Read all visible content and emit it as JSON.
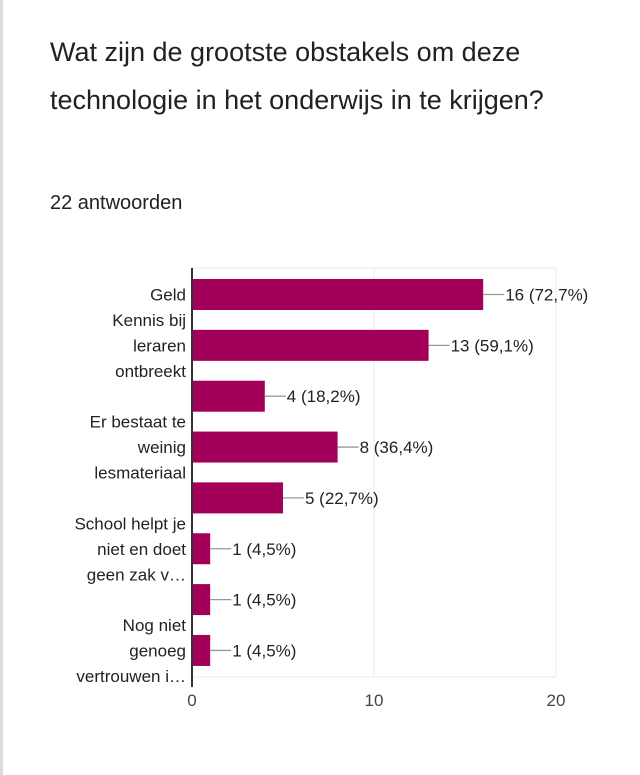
{
  "question": "Wat zijn de grootste obstakels om deze technologie in het onderwijs in te krijgen?",
  "response_count": "22 antwoorden",
  "chart_data": {
    "type": "bar",
    "orientation": "horizontal",
    "categories": [
      [
        "Geld"
      ],
      [
        "Kennis bij",
        "leraren",
        "ontbreekt"
      ],
      [],
      [
        "Er bestaat te",
        "weinig",
        "lesmateriaal"
      ],
      [],
      [
        "School helpt je",
        "niet en doet",
        "geen zak v…"
      ],
      [],
      [
        "Nog niet",
        "genoeg",
        "vertrouwen i…"
      ]
    ],
    "values": [
      16,
      13,
      4,
      8,
      5,
      1,
      1,
      1
    ],
    "data_labels": [
      "16 (72,7%)",
      "13 (59,1%)",
      "4 (18,2%)",
      "8 (36,4%)",
      "5 (22,7%)",
      "1 (4,5%)",
      "1 (4,5%)",
      "1 (4,5%)"
    ],
    "xlim": [
      0,
      20
    ],
    "xticks": [
      "0",
      "10",
      "20"
    ],
    "xtick_values": [
      0,
      10,
      20
    ],
    "grid": true,
    "bar_color": "#a3005a"
  }
}
